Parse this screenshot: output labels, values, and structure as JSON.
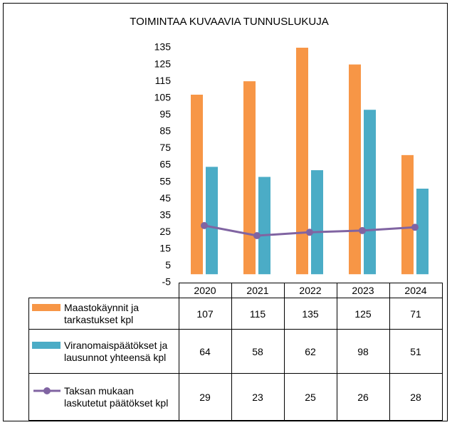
{
  "chart_data": {
    "type": "bar",
    "title": "TOIMINTAA KUVAAVIA TUNNUSLUKUJA",
    "categories": [
      "2020",
      "2021",
      "2022",
      "2023",
      "2024"
    ],
    "series": [
      {
        "name": "Maastokäynnit ja tarkastukset kpl",
        "color": "#f79646",
        "type": "bar",
        "values": [
          107,
          115,
          135,
          125,
          71
        ]
      },
      {
        "name": "Viranomaispäätökset ja lausunnot yhteensä kpl",
        "color": "#4bacc6",
        "type": "bar",
        "values": [
          64,
          58,
          62,
          98,
          51
        ]
      },
      {
        "name": "Taksan mukaan laskutetut päätökset kpl",
        "color": "#8064a2",
        "type": "line",
        "values": [
          29,
          23,
          25,
          26,
          28
        ]
      }
    ],
    "ylim": [
      -5,
      135
    ],
    "yticks": [
      -5,
      5,
      15,
      25,
      35,
      45,
      55,
      65,
      75,
      85,
      95,
      105,
      115,
      125,
      135
    ],
    "grid": false,
    "data_table": true
  }
}
